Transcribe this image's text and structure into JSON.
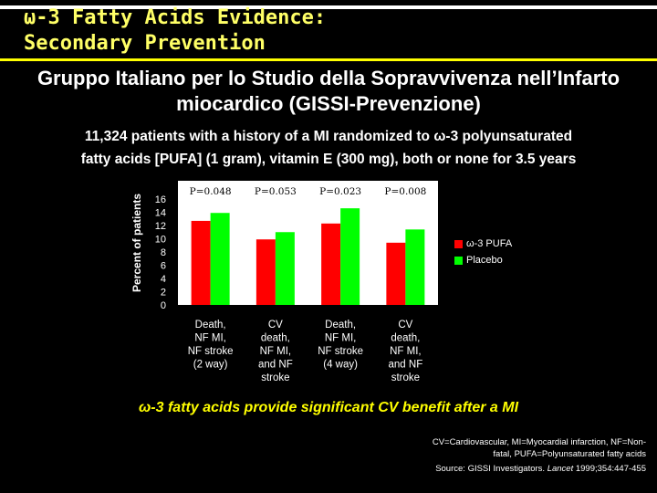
{
  "slide": {
    "title_line1": "ω-3 Fatty Acids Evidence:",
    "title_line2": "Secondary Prevention",
    "subtitle_line1": "Gruppo Italiano per lo Studio della Sopravvivenza nell’Infarto",
    "subtitle_line2": "miocardico (GISSI-Prevenzione)",
    "desc_line1": "11,324 patients with a history of a MI randomized to ω-3 polyunsaturated",
    "desc_line2": "fatty acids [PUFA] (1 gram), vitamin E (300 mg), both or none for 3.5 years",
    "conclusion": "ω-3 fatty acids provide significant CV benefit after a MI",
    "abbrev_line1": "CV=Cardiovascular, MI=Myocardial infarction, NF=Non-",
    "abbrev_line2": "fatal, PUFA=Polyunsaturated fatty acids",
    "source_prefix": "Source: GISSI Investigators. ",
    "source_journal": "Lancet",
    "source_suffix": " 1999;354:447-455"
  },
  "chart_data": {
    "type": "bar",
    "ylabel": "Percent of patients",
    "ylim": [
      0,
      16
    ],
    "yticks": [
      0,
      2,
      4,
      6,
      8,
      10,
      12,
      14,
      16
    ],
    "categories": [
      [
        "Death,",
        "NF MI,",
        "NF stroke",
        "(2 way)"
      ],
      [
        "CV",
        "death,",
        "NF MI,",
        "and NF",
        "stroke"
      ],
      [
        "Death,",
        "NF MI,",
        "NF stroke",
        "(4 way)"
      ],
      [
        "CV",
        "death,",
        "NF MI,",
        "and NF",
        "stroke"
      ]
    ],
    "p_values": [
      "P=0.048",
      "P=0.053",
      "P=0.023",
      "P=0.008"
    ],
    "series": [
      {
        "name": "ω-3 PUFA",
        "color": "#ff0000",
        "values": [
          12.7,
          9.9,
          12.3,
          9.4
        ]
      },
      {
        "name": "Placebo",
        "color": "#00ff00",
        "values": [
          13.9,
          11.0,
          14.6,
          11.4
        ]
      }
    ],
    "grid": false,
    "legend": "right",
    "plot_background": "#ffffff"
  }
}
